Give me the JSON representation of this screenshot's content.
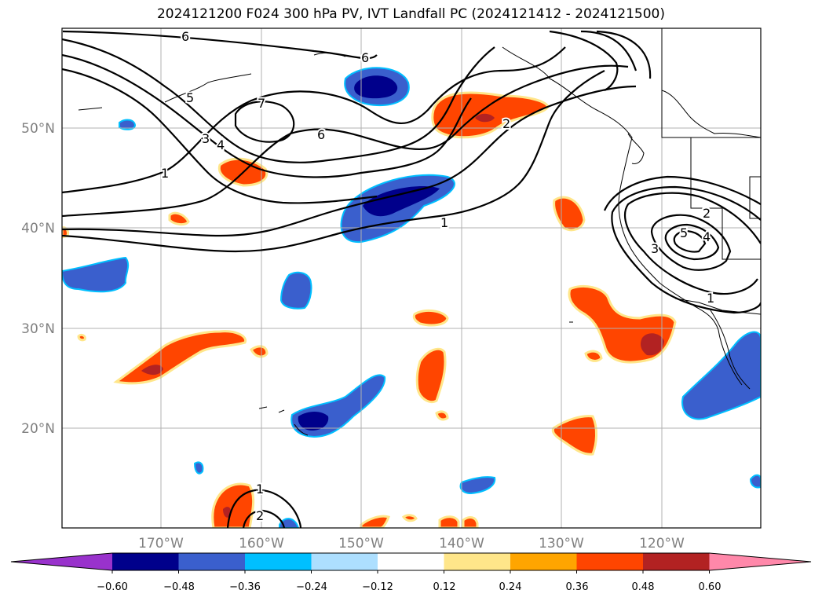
{
  "title": "2024121200 F024 300 hPa PV, IVT Landfall PC (2024121412 - 2024121500)",
  "axes": {
    "lat_labels": [
      "50°N",
      "40°N",
      "30°N",
      "20°N"
    ],
    "lon_labels": [
      "170°W",
      "160°W",
      "150°W",
      "140°W",
      "130°W",
      "120°W"
    ]
  },
  "contour_labels": [
    "6",
    "6",
    "7",
    "6",
    "5",
    "3",
    "4",
    "1",
    "2",
    "1",
    "2",
    "5",
    "4",
    "3",
    "1",
    "1",
    "2"
  ],
  "colorbar": {
    "tick_labels": [
      "−0.60",
      "−0.48",
      "−0.36",
      "−0.24",
      "−0.12",
      "0.12",
      "0.24",
      "0.36",
      "0.48",
      "0.60"
    ],
    "colors": [
      "#9932CC",
      "#00008B",
      "#3A5FCD",
      "#00BFFF",
      "#ADDFFF",
      "#FFFFFF",
      "#FFE68A",
      "#FFA500",
      "#FF4500",
      "#B22222",
      "#FF88AA"
    ]
  }
}
